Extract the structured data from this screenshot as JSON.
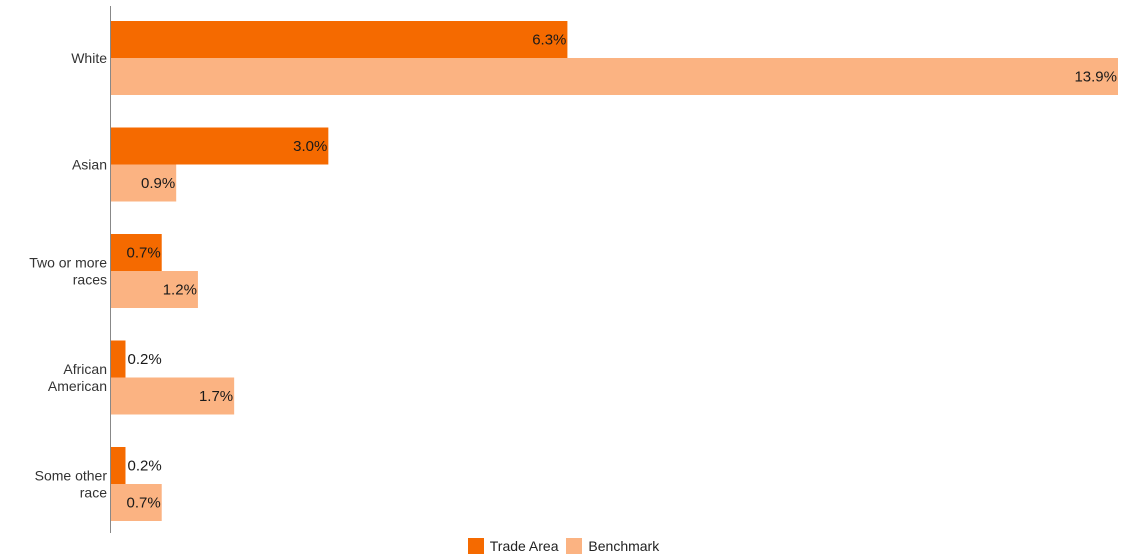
{
  "chart_data": {
    "type": "bar",
    "orientation": "horizontal",
    "categories": [
      "White",
      "Asian",
      "Two or more races",
      "African American",
      "Some other race"
    ],
    "category_lines": [
      [
        "White"
      ],
      [
        "Asian"
      ],
      [
        "Two or more",
        "races"
      ],
      [
        "African",
        "American"
      ],
      [
        "Some other",
        "race"
      ]
    ],
    "series": [
      {
        "name": "Trade Area",
        "color": "#f56a00",
        "values": [
          6.3,
          3.0,
          0.7,
          0.2,
          0.2
        ],
        "labels": [
          "6.3%",
          "3.0%",
          "0.7%",
          "0.2%",
          "0.2%"
        ]
      },
      {
        "name": "Benchmark",
        "color": "#fbb382",
        "values": [
          13.9,
          0.9,
          1.2,
          1.7,
          0.7
        ],
        "labels": [
          "13.9%",
          "0.9%",
          "1.2%",
          "1.7%",
          "0.7%"
        ]
      }
    ],
    "xlim": [
      0,
      13.9
    ],
    "grid": false,
    "legend_position": "bottom"
  }
}
